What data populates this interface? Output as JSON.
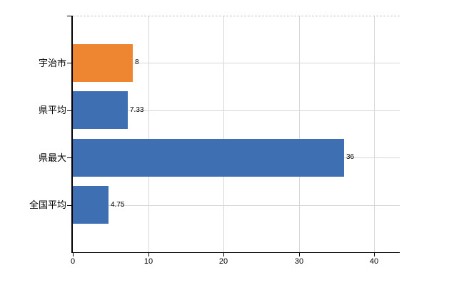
{
  "chart_data": {
    "type": "bar",
    "orientation": "horizontal",
    "title": "",
    "xlabel": "",
    "ylabel": "",
    "categories": [
      "宇治市",
      "県平均",
      "県最大",
      "全国平均"
    ],
    "series": [
      {
        "name": "",
        "values": [
          8,
          7.33,
          36,
          4.75
        ]
      }
    ],
    "value_labels": [
      "8",
      "7.33",
      "36",
      "4.75"
    ],
    "x_ticks": [
      0,
      10,
      20,
      30,
      40
    ],
    "x_tick_labels": [
      "0",
      "10",
      "20",
      "30",
      "40"
    ],
    "xlim": [
      0,
      43.4
    ],
    "grid": {
      "vertical": true,
      "horizontal_at_category_centers": true,
      "top_border_dashed": true
    },
    "legend": "none",
    "bar_colors": [
      "#EE8530",
      "#3F6FB3",
      "#3F6FB3",
      "#3F6FB3"
    ]
  },
  "colors": {
    "highlight_bar": "#EE8530",
    "series_bar": "#3F6FB3",
    "gridline": "#D6D6D6",
    "dashed_border": "#C9C9C9",
    "axis": "#000000",
    "text": "#000000",
    "background": "#FFFFFF"
  }
}
